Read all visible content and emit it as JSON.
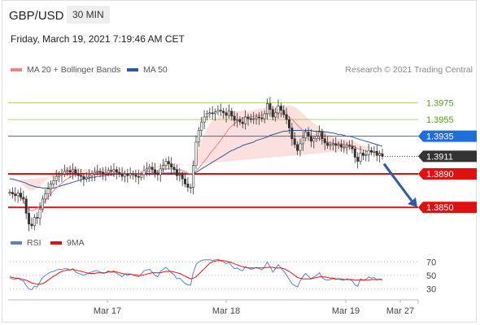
{
  "header": {
    "pair": "GBP/USD",
    "timeframe": "30 MIN"
  },
  "timestamp": "Friday, March 19, 2021 7:19:46 AM CET",
  "legend": {
    "bb": {
      "label": "MA 20 + Bollinger Bands",
      "color": "#f08080"
    },
    "ma50": {
      "label": "MA 50",
      "color": "#2c5aa0"
    },
    "rsi": {
      "label": "RSI",
      "color": "#5b7fd6"
    },
    "ma9": {
      "label": "9MA",
      "color": "#e01010"
    }
  },
  "copyright": "Research © 2021 Trading Central",
  "colors": {
    "resistance": "#8dc63f",
    "pivot": "#1e6fd9",
    "support": "#e01010",
    "current": "#333333",
    "up": "#333333",
    "down": "#333333"
  },
  "chart_data": [
    {
      "type": "candlestick",
      "ylim": [
        1.3824,
        1.3991
      ],
      "x_labels": [
        "Mar 17",
        "Mar 18",
        "Mar 19",
        "Mar 27"
      ],
      "levels": [
        {
          "label": "1.3975",
          "value": 1.3975,
          "kind": "resistance"
        },
        {
          "label": "1.3955",
          "value": 1.3955,
          "kind": "resistance"
        },
        {
          "label": "1.3935",
          "value": 1.3935,
          "kind": "pivot"
        },
        {
          "label": "1.3911",
          "value": 1.3911,
          "kind": "current"
        },
        {
          "label": "1.3890",
          "value": 1.389,
          "kind": "support"
        },
        {
          "label": "1.3850",
          "value": 1.385,
          "kind": "support"
        }
      ],
      "close_series": [
        1.3868,
        1.3866,
        1.3864,
        1.3867,
        1.3862,
        1.386,
        1.3843,
        1.383,
        1.3828,
        1.3838,
        1.3837,
        1.3848,
        1.386,
        1.3866,
        1.3872,
        1.3878,
        1.3882,
        1.3887,
        1.3889,
        1.389,
        1.3893,
        1.3894,
        1.3892,
        1.3895,
        1.389,
        1.3888,
        1.3887,
        1.3884,
        1.3886,
        1.3888,
        1.389,
        1.3892,
        1.3893,
        1.3892,
        1.389,
        1.3891,
        1.3894,
        1.3893,
        1.3895,
        1.3892,
        1.389,
        1.3887,
        1.389,
        1.3888,
        1.389,
        1.3889,
        1.3887,
        1.3886,
        1.3889,
        1.3894,
        1.3896,
        1.3898,
        1.3895,
        1.3891,
        1.3889,
        1.3896,
        1.39,
        1.3905,
        1.3902,
        1.3898,
        1.3895,
        1.3888,
        1.3889,
        1.3884,
        1.3878,
        1.3874,
        1.3874,
        1.39,
        1.3928,
        1.3942,
        1.3952,
        1.3958,
        1.3962,
        1.3963,
        1.3962,
        1.3964,
        1.3966,
        1.3965,
        1.3963,
        1.396,
        1.3965,
        1.3959,
        1.3954,
        1.3955,
        1.3952,
        1.395,
        1.3958,
        1.3956,
        1.3955,
        1.3956,
        1.3958,
        1.3957,
        1.3956,
        1.3962,
        1.3974,
        1.3967,
        1.3958,
        1.3963,
        1.3971,
        1.3966,
        1.3961,
        1.3955,
        1.3945,
        1.3932,
        1.3925,
        1.3918,
        1.3926,
        1.3933,
        1.394,
        1.3935,
        1.3929,
        1.3932,
        1.3935,
        1.394,
        1.3932,
        1.3927,
        1.3924,
        1.3925,
        1.3926,
        1.3924,
        1.3925,
        1.3922,
        1.3922,
        1.3924,
        1.3923,
        1.392,
        1.391,
        1.3905,
        1.3915,
        1.3912,
        1.3913,
        1.3918,
        1.3916,
        1.3917,
        1.3912,
        1.3914,
        1.3911
      ],
      "ma20_series": [
        1.3868,
        1.3867,
        1.3866,
        1.3865,
        1.3862,
        1.3858,
        1.3852,
        1.3847,
        1.3846,
        1.3847,
        1.3849,
        1.3851,
        1.3854,
        1.3858,
        1.3862,
        1.3866,
        1.387,
        1.3873,
        1.3876,
        1.3879,
        1.3882,
        1.3884,
        1.3886,
        1.3888,
        1.3889,
        1.3889,
        1.3889,
        1.3889,
        1.389,
        1.389,
        1.389,
        1.3891,
        1.3891,
        1.3891,
        1.3891,
        1.3891,
        1.3891,
        1.3891,
        1.3891,
        1.3891,
        1.3891,
        1.3891,
        1.3891,
        1.389,
        1.389,
        1.389,
        1.389,
        1.389,
        1.389,
        1.3891,
        1.3892,
        1.3893,
        1.3893,
        1.3893,
        1.3893,
        1.3894,
        1.3895,
        1.3896,
        1.3896,
        1.3896,
        1.3896,
        1.3895,
        1.3895,
        1.3894,
        1.3893,
        1.3891,
        1.389,
        1.3891,
        1.3894,
        1.3897,
        1.3901,
        1.3905,
        1.3909,
        1.3914,
        1.3918,
        1.3922,
        1.3926,
        1.393,
        1.3935,
        1.3939,
        1.3944,
        1.3947,
        1.395,
        1.3953,
        1.3955,
        1.3957,
        1.3958,
        1.3958,
        1.3958,
        1.3959,
        1.396,
        1.396,
        1.396,
        1.3961,
        1.3962,
        1.3962,
        1.3962,
        1.3962,
        1.3962,
        1.3962,
        1.3961,
        1.396,
        1.3958,
        1.3955,
        1.3952,
        1.3948,
        1.3945,
        1.3942,
        1.394,
        1.3938,
        1.3936,
        1.3935,
        1.3933,
        1.3932,
        1.393,
        1.3929,
        1.3928,
        1.3927,
        1.3927,
        1.3926,
        1.3926,
        1.3926,
        1.3925,
        1.3925,
        1.3925,
        1.3924,
        1.3922,
        1.392,
        1.3919,
        1.3918,
        1.3917,
        1.3917,
        1.3916,
        1.3916,
        1.3915,
        1.3915,
        1.3914
      ],
      "bb_width_series": [
        14,
        14,
        15,
        16,
        17,
        18,
        21,
        23,
        24,
        24,
        24,
        24,
        24,
        24,
        23,
        22,
        21,
        20,
        18,
        17,
        15,
        14,
        12,
        10,
        9,
        8,
        7,
        6,
        6,
        5,
        5,
        5,
        5,
        5,
        5,
        5,
        5,
        5,
        5,
        5,
        5,
        5,
        5,
        5,
        5,
        5,
        5,
        5,
        5,
        6,
        6,
        6,
        6,
        6,
        6,
        6,
        7,
        7,
        7,
        7,
        7,
        7,
        7,
        7,
        8,
        9,
        10,
        14,
        20,
        26,
        30,
        33,
        35,
        36,
        36,
        35,
        33,
        31,
        28,
        25,
        22,
        18,
        15,
        12,
        10,
        9,
        8,
        7,
        7,
        7,
        7,
        8,
        8,
        8,
        9,
        9,
        9,
        9,
        10,
        10,
        11,
        12,
        14,
        16,
        18,
        20,
        20,
        20,
        19,
        18,
        17,
        16,
        15,
        14,
        13,
        12,
        10,
        9,
        8,
        7,
        6,
        6,
        6,
        6,
        6,
        6,
        6,
        6,
        6,
        6,
        6,
        6,
        6,
        6,
        6,
        6
      ],
      "ma50_series": [
        1.3884,
        1.3884,
        1.3883,
        1.3882,
        1.3881,
        1.388,
        1.3879,
        1.3877,
        1.3876,
        1.3875,
        1.3874,
        1.3874,
        1.3873,
        1.3873,
        1.3873,
        1.3873,
        1.3873,
        1.3874,
        1.3875,
        1.3876,
        1.3877,
        1.3878,
        1.3879,
        1.388,
        1.3881,
        1.3882,
        1.3883,
        1.3884,
        1.3884,
        1.3885,
        1.3886,
        1.3886,
        1.3887,
        1.3887,
        1.3888,
        1.3888,
        1.3889,
        1.3889,
        1.3889,
        1.389,
        1.389,
        1.389,
        1.389,
        1.389,
        1.389,
        1.389,
        1.389,
        1.389,
        1.389,
        1.389,
        1.389,
        1.389,
        1.3891,
        1.3891,
        1.3891,
        1.3891,
        1.3891,
        1.3891,
        1.3891,
        1.3891,
        1.3891,
        1.3891,
        1.3891,
        1.3891,
        1.3891,
        1.389,
        1.389,
        1.3891,
        1.3892,
        1.3894,
        1.3896,
        1.3898,
        1.39,
        1.3902,
        1.3904,
        1.3906,
        1.3908,
        1.391,
        1.3912,
        1.3914,
        1.3916,
        1.3918,
        1.3919,
        1.3921,
        1.3922,
        1.3924,
        1.3925,
        1.3926,
        1.3927,
        1.3928,
        1.393,
        1.3931,
        1.3932,
        1.3933,
        1.3934,
        1.3936,
        1.3937,
        1.3938,
        1.3939,
        1.394,
        1.3941,
        1.3941,
        1.3942,
        1.3942,
        1.3942,
        1.3942,
        1.3942,
        1.3942,
        1.3942,
        1.3942,
        1.3942,
        1.3941,
        1.3941,
        1.3941,
        1.3941,
        1.394,
        1.394,
        1.3939,
        1.3939,
        1.3938,
        1.3937,
        1.3937,
        1.3936,
        1.3935,
        1.3935,
        1.3934,
        1.3933,
        1.3932,
        1.3931,
        1.393,
        1.3929,
        1.3928,
        1.3927,
        1.3926,
        1.3925,
        1.3924,
        1.3923
      ]
    },
    {
      "type": "line",
      "name": "RSI",
      "ylim": [
        20,
        80
      ],
      "y_ticks": [
        "70",
        "50",
        "30"
      ],
      "tick_values": [
        70,
        50,
        30
      ],
      "rsi_series": [
        46,
        45,
        44,
        46,
        43,
        42,
        35,
        30,
        29,
        34,
        33,
        40,
        47,
        50,
        53,
        55,
        56,
        58,
        59,
        59,
        60,
        60,
        58,
        60,
        55,
        53,
        52,
        50,
        52,
        54,
        55,
        57,
        57,
        55,
        53,
        54,
        57,
        55,
        57,
        53,
        51,
        48,
        52,
        50,
        52,
        51,
        49,
        48,
        52,
        57,
        58,
        59,
        55,
        50,
        48,
        56,
        59,
        62,
        58,
        54,
        51,
        45,
        46,
        42,
        38,
        36,
        36,
        54,
        66,
        70,
        72,
        73,
        73,
        73,
        72,
        73,
        74,
        72,
        70,
        67,
        70,
        64,
        60,
        61,
        58,
        57,
        63,
        61,
        59,
        60,
        62,
        60,
        58,
        63,
        70,
        63,
        55,
        60,
        66,
        61,
        56,
        51,
        44,
        38,
        35,
        33,
        42,
        48,
        53,
        49,
        45,
        48,
        50,
        54,
        47,
        44,
        43,
        44,
        45,
        44,
        45,
        43,
        43,
        45,
        44,
        42,
        36,
        34,
        45,
        43,
        44,
        48,
        46,
        47,
        43,
        45,
        43
      ],
      "ma9_series": [
        48,
        47,
        46,
        46,
        45,
        44,
        43,
        41,
        39,
        38,
        37,
        37,
        38,
        40,
        43,
        46,
        49,
        51,
        54,
        56,
        57,
        58,
        58,
        59,
        58,
        57,
        56,
        55,
        54,
        53,
        53,
        53,
        54,
        54,
        54,
        54,
        55,
        55,
        55,
        55,
        54,
        53,
        52,
        52,
        52,
        51,
        51,
        50,
        50,
        51,
        52,
        53,
        54,
        54,
        54,
        54,
        55,
        56,
        56,
        56,
        55,
        54,
        53,
        51,
        49,
        47,
        45,
        46,
        48,
        52,
        56,
        60,
        64,
        68,
        70,
        71,
        72,
        72,
        72,
        71,
        70,
        69,
        67,
        66,
        64,
        63,
        62,
        61,
        61,
        61,
        61,
        61,
        61,
        61,
        62,
        62,
        62,
        61,
        61,
        61,
        60,
        58,
        56,
        53,
        50,
        47,
        46,
        45,
        45,
        45,
        45,
        46,
        47,
        48,
        48,
        48,
        47,
        46,
        46,
        45,
        45,
        45,
        44,
        44,
        44,
        44,
        43,
        43,
        43,
        43,
        43,
        43,
        44,
        44,
        44,
        44,
        44
      ]
    }
  ]
}
